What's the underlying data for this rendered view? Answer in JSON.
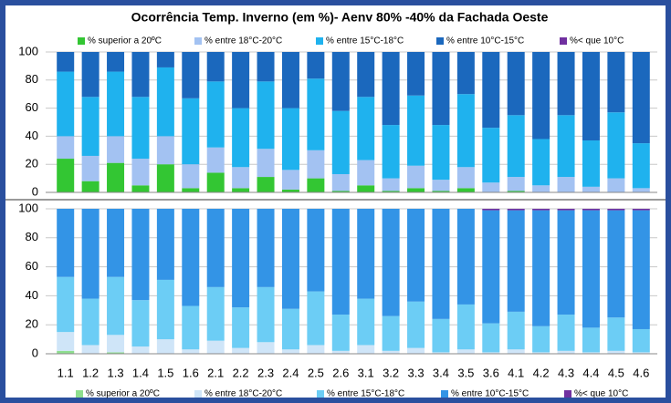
{
  "chart_data": [
    {
      "type": "bar",
      "stacked": true,
      "title": "Ocorrência Temp. Inverno (em %)- Aenv 80% -40% da Fachada  Oeste",
      "categories": [
        null,
        null,
        null,
        null,
        null,
        null,
        null,
        null,
        null,
        null,
        null,
        null,
        null,
        null,
        null,
        null,
        null,
        null,
        null,
        null,
        null,
        null,
        null,
        null
      ],
      "ylim": [
        0,
        100
      ],
      "yticks": [
        0,
        20,
        40,
        60,
        80,
        100
      ],
      "grid": true,
      "series": [
        {
          "name": "% superior a 20ºC",
          "color": "#33c633",
          "values": [
            24,
            8,
            21,
            5,
            20,
            3,
            14,
            3,
            11,
            2,
            10,
            1,
            5,
            1,
            3,
            1,
            3,
            0,
            1,
            0,
            0,
            0,
            0,
            0
          ]
        },
        {
          "name": "% entre 18°C-20°C",
          "color": "#a3c2f2",
          "values": [
            16,
            18,
            19,
            19,
            20,
            17,
            18,
            15,
            20,
            14,
            20,
            12,
            18,
            9,
            16,
            8,
            15,
            7,
            10,
            5,
            11,
            4,
            10,
            3
          ]
        },
        {
          "name": "% entre 15°C-18°C",
          "color": "#1fb2ee",
          "values": [
            46,
            42,
            46,
            44,
            49,
            47,
            47,
            42,
            48,
            44,
            51,
            45,
            45,
            38,
            50,
            39,
            52,
            39,
            44,
            33,
            44,
            33,
            47,
            32
          ]
        },
        {
          "name": "% entre 10°C-15°C",
          "color": "#1b68bd",
          "values": [
            14,
            32,
            14,
            32,
            11,
            33,
            21,
            40,
            21,
            40,
            19,
            42,
            32,
            52,
            31,
            52,
            30,
            54,
            45,
            62,
            45,
            63,
            43,
            65
          ]
        },
        {
          "name": "%< que 10°C",
          "color": "#7030a0",
          "values": [
            0,
            0,
            0,
            0,
            0,
            0,
            0,
            0,
            0,
            0,
            0,
            0,
            0,
            0,
            0,
            0,
            0,
            0,
            0,
            0,
            0,
            0,
            0,
            0
          ]
        }
      ]
    },
    {
      "type": "bar",
      "stacked": true,
      "categories": [
        "1.1",
        "1.2",
        "1.3",
        "1.4",
        "1.5",
        "1.6",
        "2.1",
        "2.2",
        "2.3",
        "2.4",
        "2.5",
        "2.6",
        "3.1",
        "3.2",
        "3.3",
        "3.4",
        "3.5",
        "3.6",
        "4.1",
        "4.2",
        "4.3",
        "4.4",
        "4.5",
        "4.6"
      ],
      "ylim": [
        0,
        100
      ],
      "yticks": [
        0,
        20,
        40,
        60,
        80,
        100
      ],
      "grid": true,
      "series": [
        {
          "name": "% superior a 20ºC",
          "color": "#8ede8e",
          "values": [
            2,
            0,
            1,
            0,
            0,
            0,
            0,
            0,
            0,
            0,
            0,
            0,
            0,
            0,
            0,
            0,
            0,
            0,
            0,
            0,
            0,
            0,
            0,
            0
          ]
        },
        {
          "name": "% entre 18°C-20°C",
          "color": "#cfe5f8",
          "values": [
            13,
            6,
            12,
            5,
            10,
            3,
            9,
            4,
            8,
            3,
            6,
            2,
            6,
            2,
            4,
            1,
            3,
            1,
            3,
            1,
            2,
            1,
            2,
            1
          ]
        },
        {
          "name": "% entre 15°C-18°C",
          "color": "#6ccdf5",
          "values": [
            38,
            32,
            40,
            32,
            41,
            30,
            37,
            28,
            38,
            28,
            37,
            25,
            32,
            24,
            32,
            23,
            31,
            20,
            26,
            18,
            25,
            17,
            23,
            16
          ]
        },
        {
          "name": "% entre 10°C-15°C",
          "color": "#3394e6",
          "values": [
            47,
            62,
            47,
            63,
            49,
            67,
            54,
            68,
            54,
            69,
            57,
            73,
            62,
            74,
            64,
            76,
            66,
            78,
            70,
            80,
            72,
            81,
            74,
            82
          ]
        },
        {
          "name": "%< que 10°C",
          "color": "#7030a0",
          "values": [
            0,
            0,
            0,
            0,
            0,
            0,
            0,
            0,
            0,
            0,
            0,
            0,
            0,
            0,
            0,
            0,
            0,
            1,
            1,
            1,
            1,
            1,
            1,
            1
          ]
        }
      ]
    }
  ]
}
